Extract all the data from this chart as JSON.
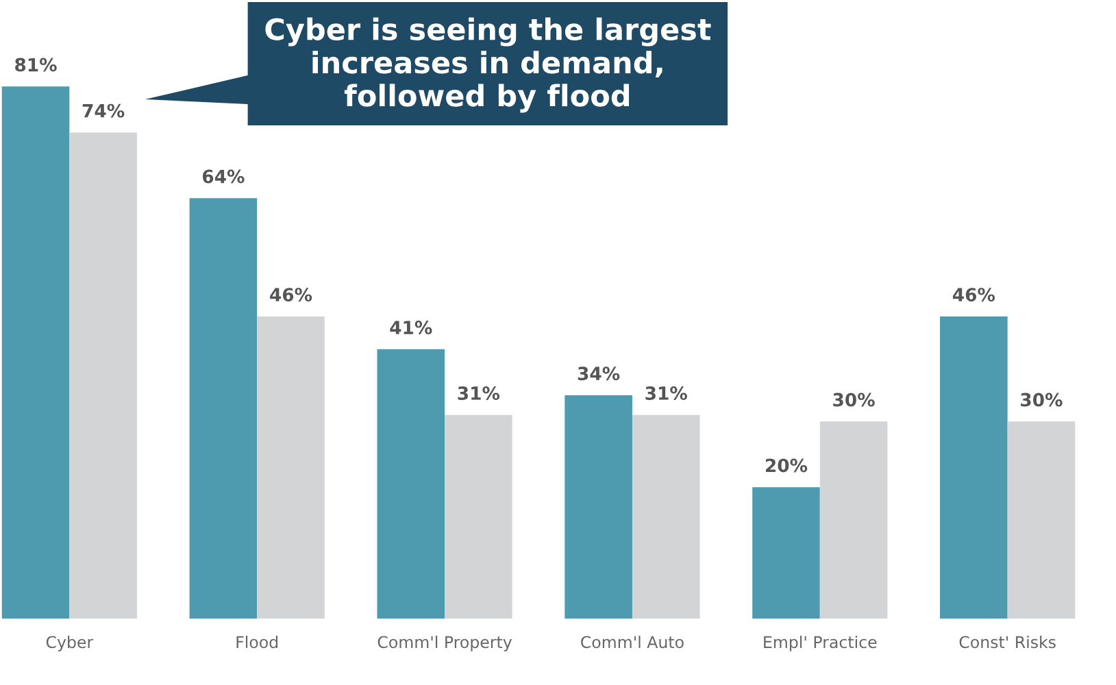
{
  "chart_data": {
    "type": "bar",
    "categories": [
      "Cyber",
      "Flood",
      "Comm'l Property",
      "Comm'l Auto",
      "Empl' Practice",
      "Const' Risks"
    ],
    "series": [
      {
        "color": "#4e9bb0",
        "values": [
          81,
          64,
          41,
          34,
          20,
          46
        ],
        "value_labels": [
          "81%",
          "64%",
          "41%",
          "34%",
          "20%",
          "46%"
        ]
      },
      {
        "color": "#d3d4d6",
        "values": [
          74,
          46,
          31,
          31,
          30,
          30
        ],
        "value_labels": [
          "74%",
          "46%",
          "31%",
          "31%",
          "30%",
          "30%"
        ]
      }
    ],
    "annotations": [
      "Cyber is seeing the largest\nincreases in demand,\nfollowed by flood"
    ],
    "tick_labels": "x"
  }
}
